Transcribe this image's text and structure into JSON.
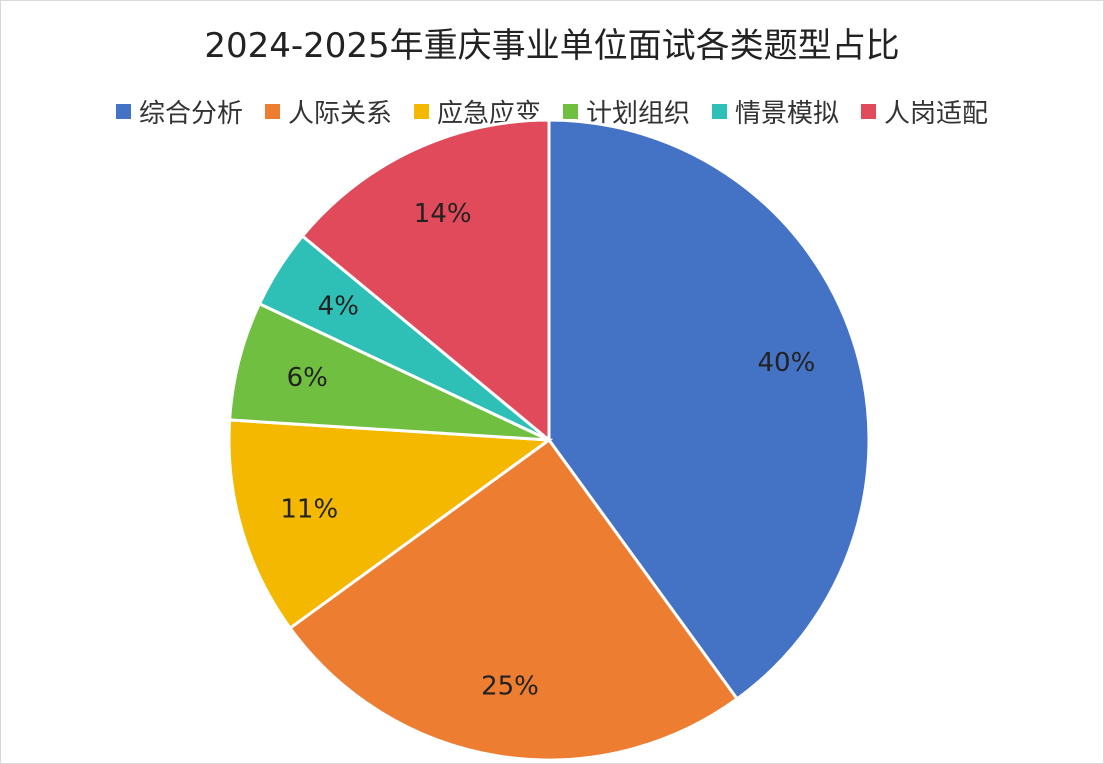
{
  "chart_data": {
    "type": "pie",
    "title": "2024-2025年重庆事业单位面试各类题型占比",
    "legend_position": "top",
    "categories": [
      "综合分析",
      "人际关系",
      "应急应变",
      "计划组织",
      "情景模拟",
      "人岗适配"
    ],
    "values": [
      40,
      25,
      11,
      6,
      4,
      14
    ],
    "data_labels": [
      "40%",
      "25%",
      "11%",
      "6%",
      "4%",
      "14%"
    ],
    "colors": [
      "#4472C4",
      "#ED7D31",
      "#F4B800",
      "#70BF41",
      "#2EC0B7",
      "#E04A5A"
    ],
    "start_angle_deg": 0,
    "direction": "clockwise"
  }
}
